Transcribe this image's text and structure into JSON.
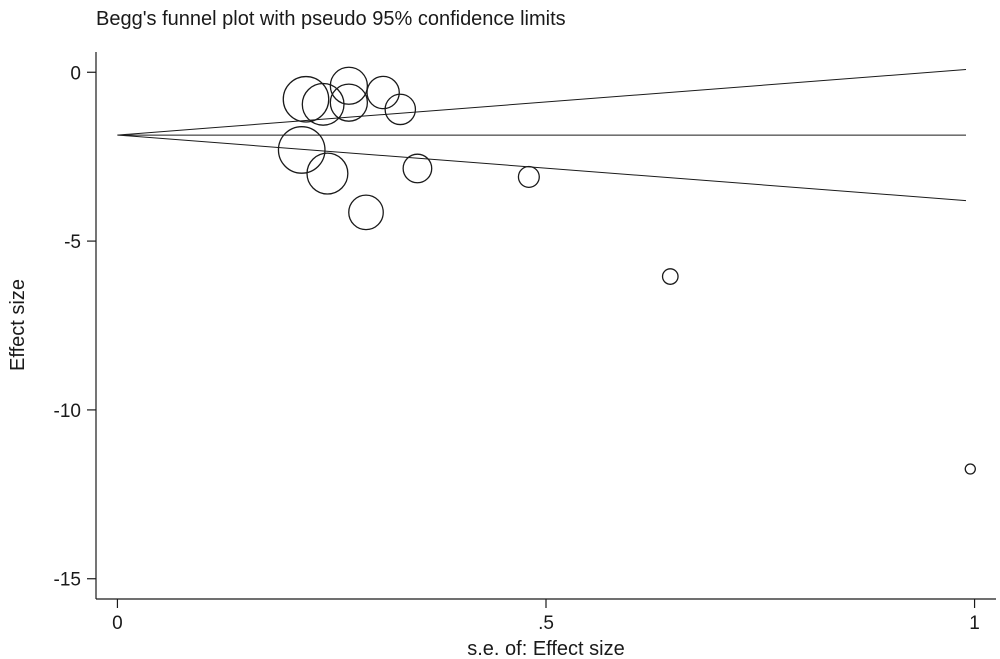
{
  "chart_data": {
    "type": "scatter",
    "title": "Begg's funnel plot with pseudo 95% confidence limits",
    "xlabel": "s.e. of: Effect size",
    "ylabel": "Effect size",
    "xlim": [
      -0.025,
      1.025
    ],
    "ylim": [
      -15.6,
      0.6
    ],
    "x_ticks": [
      {
        "value": 0,
        "label": "0"
      },
      {
        "value": 0.5,
        "label": ".5"
      },
      {
        "value": 1,
        "label": "1"
      }
    ],
    "y_ticks": [
      {
        "value": 0,
        "label": "0"
      },
      {
        "value": -5,
        "label": "-5"
      },
      {
        "value": -10,
        "label": "-10"
      },
      {
        "value": -15,
        "label": "-15"
      }
    ],
    "grid": false,
    "pooled_effect": -1.86,
    "ci_multiplier": 1.96,
    "points": [
      {
        "se": 0.22,
        "effect": -0.8
      },
      {
        "se": 0.24,
        "effect": -0.95
      },
      {
        "se": 0.27,
        "effect": -0.4
      },
      {
        "se": 0.27,
        "effect": -0.9
      },
      {
        "se": 0.31,
        "effect": -0.6
      },
      {
        "se": 0.33,
        "effect": -1.1
      },
      {
        "se": 0.215,
        "effect": -2.3
      },
      {
        "se": 0.245,
        "effect": -3.0
      },
      {
        "se": 0.29,
        "effect": -4.15
      },
      {
        "se": 0.35,
        "effect": -2.85
      },
      {
        "se": 0.48,
        "effect": -3.1
      },
      {
        "se": 0.645,
        "effect": -6.05
      },
      {
        "se": 0.995,
        "effect": -11.75
      }
    ]
  }
}
